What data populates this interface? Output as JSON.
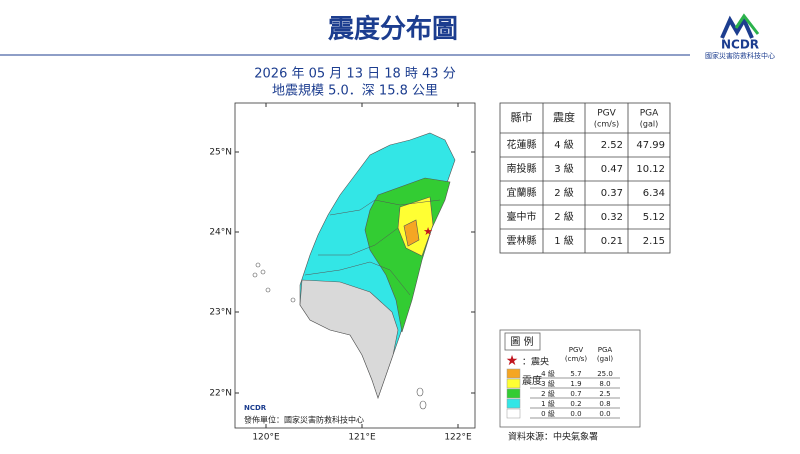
{
  "header": {
    "title": "震度分布圖",
    "logo": "NCDR",
    "logo_subtitle": "國家災害防救科技中心"
  },
  "info": {
    "datetime": "2026 年 05 月 13 日 18 時 43 分",
    "magnitude": "地震規模 5.0．深 15.8 公里"
  },
  "map": {
    "lat_labels": [
      "25°N",
      "24°N",
      "23°N",
      "22°N"
    ],
    "lon_labels": [
      "120°E",
      "121°E",
      "122°E"
    ],
    "logo": "NCDR",
    "publisher": "發佈單位：國家災害防救科技中心"
  },
  "table": {
    "headers": [
      {
        "label": "縣市"
      },
      {
        "label": "震度"
      },
      {
        "label": "PGV",
        "unit": "(cm/s)"
      },
      {
        "label": "PGA",
        "unit": "(gal)"
      }
    ],
    "rows": [
      [
        "花蓮縣",
        "4 級",
        "2.52",
        "47.99"
      ],
      [
        "南投縣",
        "3 級",
        "0.47",
        "10.12"
      ],
      [
        "宜蘭縣",
        "2 級",
        "0.37",
        "6.34"
      ],
      [
        "臺中市",
        "2 級",
        "0.32",
        "5.12"
      ],
      [
        "雲林縣",
        "1 級",
        "0.21",
        "2.15"
      ]
    ]
  },
  "legend": {
    "title": "圖 例",
    "epicenter": "：震央",
    "header": {
      "label": "震度",
      "pgv": "PGV",
      "pgv_unit": "(cm/s)",
      "pga": "PGA",
      "pga_unit": "(gal)"
    },
    "rows": [
      {
        "level": "4 級",
        "pgv": "5.7",
        "pga": "25.0",
        "color": "#f5a623"
      },
      {
        "level": "3 級",
        "pgv": "1.9",
        "pga": "8.0",
        "color": "#ffff33"
      },
      {
        "level": "2 級",
        "pgv": "0.7",
        "pga": "2.5",
        "color": "#33cc33"
      },
      {
        "level": "1 級",
        "pgv": "0.2",
        "pga": "0.8",
        "color": "#33e6e6"
      },
      {
        "level": "0 級",
        "pgv": "0.0",
        "pga": "0.0",
        "color": "#ffffff"
      }
    ]
  },
  "source": "資料來源：中央氣象署"
}
